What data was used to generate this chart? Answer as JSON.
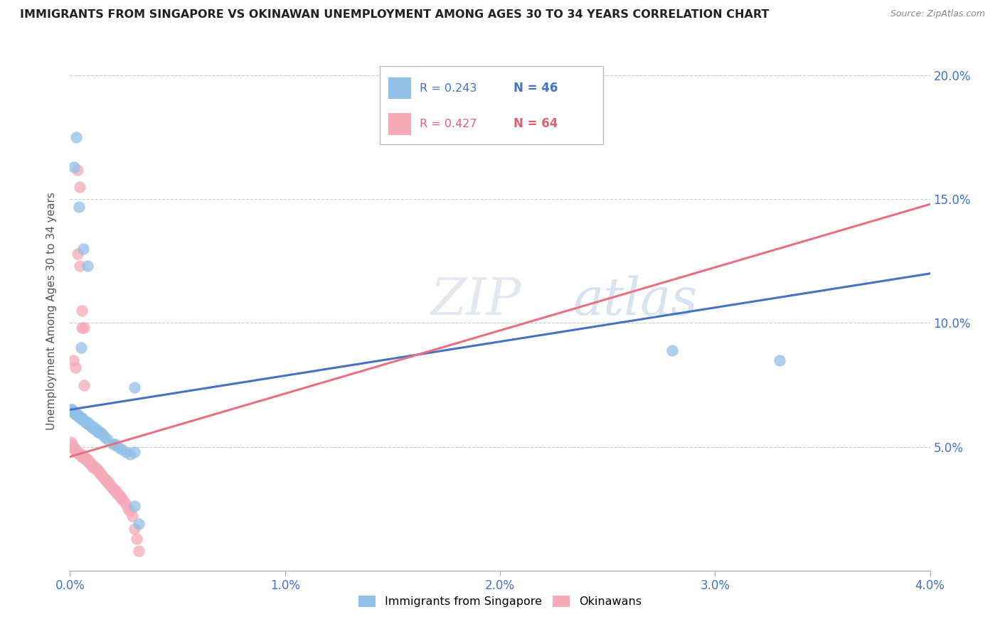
{
  "title": "IMMIGRANTS FROM SINGAPORE VS OKINAWAN UNEMPLOYMENT AMONG AGES 30 TO 34 YEARS CORRELATION CHART",
  "source": "Source: ZipAtlas.com",
  "ylabel": "Unemployment Among Ages 30 to 34 years",
  "x_min": 0.0,
  "x_max": 0.04,
  "y_min": 0.0,
  "y_max": 0.21,
  "x_ticks": [
    0.0,
    0.01,
    0.02,
    0.03,
    0.04
  ],
  "x_tick_labels": [
    "0.0%",
    "1.0%",
    "2.0%",
    "3.0%",
    "4.0%"
  ],
  "y_ticks": [
    0.0,
    0.05,
    0.1,
    0.15,
    0.2
  ],
  "y_tick_labels": [
    "",
    "5.0%",
    "10.0%",
    "15.0%",
    "20.0%"
  ],
  "blue_color": "#92c0e8",
  "pink_color": "#f5aab8",
  "blue_line_color": "#4472c4",
  "pink_line_color": "#e87080",
  "legend_label_blue": "Immigrants from Singapore",
  "legend_label_pink": "Okinawans",
  "watermark": "ZIPatlas",
  "blue_line_x0": 0.0,
  "blue_line_y0": 0.065,
  "blue_line_x1": 0.04,
  "blue_line_y1": 0.12,
  "pink_line_x0": 0.0,
  "pink_line_y0": 0.046,
  "pink_line_x1": 0.04,
  "pink_line_y1": 0.148,
  "blue_points_x": [
    5e-05,
    0.0001,
    0.00015,
    0.0002,
    0.00025,
    0.0003,
    0.00035,
    0.0004,
    0.00045,
    0.0005,
    0.00055,
    0.0006,
    0.0007,
    0.00075,
    0.0008,
    0.00085,
    0.0009,
    0.001,
    0.00105,
    0.0011,
    0.00115,
    0.00125,
    0.0013,
    0.00135,
    0.0014,
    0.0015,
    0.0016,
    0.00175,
    0.002,
    0.0021,
    0.00225,
    0.0024,
    0.0026,
    0.0028,
    0.003,
    0.0032,
    0.003,
    0.028,
    0.033,
    0.003,
    0.0005,
    0.0008,
    0.0003,
    0.0002,
    0.0004,
    0.0006
  ],
  "blue_points_y": [
    0.065,
    0.065,
    0.064,
    0.064,
    0.063,
    0.063,
    0.063,
    0.062,
    0.062,
    0.062,
    0.061,
    0.061,
    0.06,
    0.06,
    0.06,
    0.059,
    0.059,
    0.058,
    0.058,
    0.058,
    0.057,
    0.057,
    0.056,
    0.056,
    0.056,
    0.055,
    0.054,
    0.053,
    0.051,
    0.051,
    0.05,
    0.049,
    0.048,
    0.047,
    0.026,
    0.019,
    0.074,
    0.089,
    0.085,
    0.048,
    0.09,
    0.123,
    0.175,
    0.163,
    0.147,
    0.13
  ],
  "pink_points_x": [
    5e-05,
    0.0001,
    0.00015,
    0.0002,
    0.00025,
    0.0003,
    0.00035,
    0.0004,
    0.00045,
    0.0005,
    0.00055,
    0.0006,
    0.00065,
    0.0007,
    0.00075,
    0.0008,
    0.00085,
    0.0009,
    0.00095,
    0.001,
    0.00105,
    0.0011,
    0.00115,
    0.0012,
    0.00125,
    0.0013,
    0.00135,
    0.0014,
    0.00145,
    0.0015,
    0.0016,
    0.00165,
    0.0017,
    0.00175,
    0.0018,
    0.00185,
    0.0019,
    0.002,
    0.00205,
    0.0021,
    0.00215,
    0.0022,
    0.00225,
    0.0023,
    0.00235,
    0.0024,
    0.0025,
    0.0026,
    0.0027,
    0.0028,
    0.0029,
    0.003,
    0.0031,
    0.0032,
    0.00015,
    0.00025,
    0.00035,
    0.00045,
    0.00055,
    0.00065,
    0.00035,
    0.00045,
    0.00055,
    0.00065
  ],
  "pink_points_y": [
    0.052,
    0.051,
    0.05,
    0.049,
    0.049,
    0.048,
    0.048,
    0.047,
    0.047,
    0.047,
    0.046,
    0.046,
    0.046,
    0.045,
    0.045,
    0.045,
    0.044,
    0.044,
    0.043,
    0.043,
    0.042,
    0.042,
    0.042,
    0.041,
    0.041,
    0.04,
    0.04,
    0.039,
    0.039,
    0.038,
    0.037,
    0.037,
    0.036,
    0.036,
    0.035,
    0.035,
    0.034,
    0.033,
    0.033,
    0.032,
    0.032,
    0.031,
    0.031,
    0.03,
    0.03,
    0.029,
    0.028,
    0.027,
    0.025,
    0.024,
    0.022,
    0.017,
    0.013,
    0.008,
    0.085,
    0.082,
    0.128,
    0.123,
    0.105,
    0.098,
    0.162,
    0.155,
    0.098,
    0.075
  ]
}
